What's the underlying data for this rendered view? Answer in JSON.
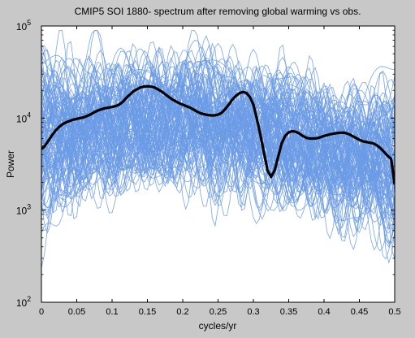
{
  "chart_data": {
    "type": "line",
    "title": "CMIP5 SOI 1880- spectrum after removing global warming vs obs.",
    "xlabel": "cycles/yr",
    "ylabel": "Power",
    "xlim": [
      0,
      0.5
    ],
    "ylim": [
      100,
      100000
    ],
    "yscale": "log",
    "grid": false,
    "x_ticks": [
      0,
      0.05,
      0.1,
      0.15,
      0.2,
      0.25,
      0.3,
      0.35,
      0.4,
      0.45,
      0.5
    ],
    "x_tick_labels": [
      "0",
      "0.05",
      "0.1",
      "0.15",
      "0.2",
      "0.25",
      "0.3",
      "0.35",
      "0.4",
      "0.45",
      "0.5"
    ],
    "y_ticks": [
      {
        "value": 100,
        "base": "10",
        "exp": "2"
      },
      {
        "value": 1000,
        "base": "10",
        "exp": "3"
      },
      {
        "value": 10000,
        "base": "10",
        "exp": "4"
      },
      {
        "value": 100000,
        "base": "10",
        "exp": "5"
      }
    ],
    "model_series_color": "#6c9be6",
    "observed_series_color": "#000000",
    "observed": {
      "x": [
        0,
        0.005,
        0.01,
        0.015,
        0.02,
        0.025,
        0.03,
        0.035,
        0.04,
        0.045,
        0.05,
        0.055,
        0.06,
        0.065,
        0.07,
        0.075,
        0.08,
        0.085,
        0.09,
        0.095,
        0.1,
        0.105,
        0.11,
        0.115,
        0.12,
        0.125,
        0.13,
        0.135,
        0.14,
        0.145,
        0.15,
        0.155,
        0.16,
        0.165,
        0.17,
        0.175,
        0.18,
        0.185,
        0.19,
        0.195,
        0.2,
        0.205,
        0.21,
        0.215,
        0.22,
        0.225,
        0.23,
        0.235,
        0.24,
        0.245,
        0.25,
        0.255,
        0.26,
        0.265,
        0.27,
        0.275,
        0.28,
        0.285,
        0.29,
        0.295,
        0.3,
        0.305,
        0.31,
        0.315,
        0.32,
        0.325,
        0.33,
        0.335,
        0.34,
        0.345,
        0.35,
        0.355,
        0.36,
        0.365,
        0.37,
        0.375,
        0.38,
        0.385,
        0.39,
        0.395,
        0.4,
        0.405,
        0.41,
        0.415,
        0.42,
        0.425,
        0.43,
        0.435,
        0.44,
        0.445,
        0.45,
        0.455,
        0.46,
        0.465,
        0.47,
        0.475,
        0.48,
        0.485,
        0.49,
        0.495,
        0.5
      ],
      "y": [
        4600,
        5000,
        5700,
        6500,
        7300,
        8000,
        8600,
        9000,
        9300,
        9600,
        9800,
        10000,
        10200,
        10600,
        11000,
        11600,
        12100,
        12500,
        12800,
        13000,
        13200,
        13500,
        14000,
        15000,
        16500,
        18000,
        19500,
        20500,
        21500,
        22000,
        22200,
        22000,
        21500,
        20500,
        19500,
        18200,
        17000,
        16000,
        15200,
        14500,
        14000,
        13500,
        13000,
        12400,
        11800,
        11300,
        11000,
        10800,
        10700,
        10700,
        10900,
        11400,
        12500,
        14000,
        15800,
        17400,
        18600,
        19200,
        18800,
        17000,
        14000,
        9800,
        6500,
        4200,
        2700,
        2300,
        2700,
        3800,
        5300,
        6400,
        7000,
        7200,
        7100,
        6800,
        6400,
        6100,
        6000,
        6000,
        6050,
        6200,
        6400,
        6550,
        6700,
        6800,
        6900,
        6950,
        6900,
        6700,
        6400,
        6100,
        5800,
        5600,
        5500,
        5400,
        5300,
        5050,
        4700,
        4300,
        3900,
        3600,
        1900
      ]
    },
    "model_series_count": 120
  }
}
